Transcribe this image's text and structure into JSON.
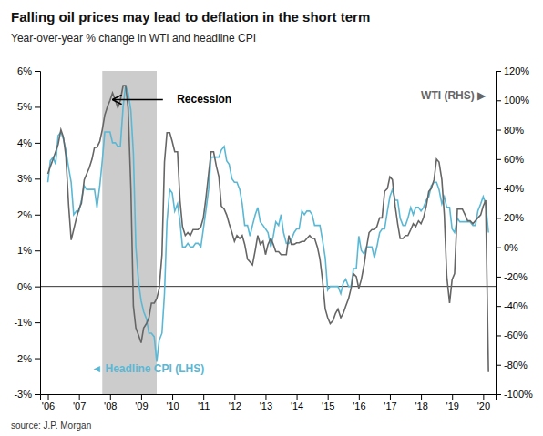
{
  "chart_data": {
    "type": "line",
    "title": "Falling oil prices may lead to deflation in the short term",
    "subtitle": "Year-over-year % change in WTI and headline CPI",
    "source": "source: J.P. Morgan",
    "grid": false,
    "x": [
      2006.0,
      2006.08,
      2006.17,
      2006.25,
      2006.33,
      2006.42,
      2006.5,
      2006.58,
      2006.67,
      2006.75,
      2006.83,
      2006.92,
      2007.0,
      2007.08,
      2007.17,
      2007.25,
      2007.33,
      2007.42,
      2007.5,
      2007.58,
      2007.67,
      2007.75,
      2007.83,
      2007.92,
      2008.0,
      2008.08,
      2008.17,
      2008.25,
      2008.33,
      2008.42,
      2008.5,
      2008.58,
      2008.67,
      2008.75,
      2008.83,
      2008.92,
      2009.0,
      2009.08,
      2009.17,
      2009.25,
      2009.33,
      2009.42,
      2009.5,
      2009.58,
      2009.67,
      2009.75,
      2009.83,
      2009.92,
      2010.0,
      2010.08,
      2010.17,
      2010.25,
      2010.33,
      2010.42,
      2010.5,
      2010.58,
      2010.67,
      2010.75,
      2010.83,
      2010.92,
      2011.0,
      2011.08,
      2011.17,
      2011.25,
      2011.33,
      2011.42,
      2011.5,
      2011.58,
      2011.67,
      2011.75,
      2011.83,
      2011.92,
      2012.0,
      2012.08,
      2012.17,
      2012.25,
      2012.33,
      2012.42,
      2012.5,
      2012.58,
      2012.67,
      2012.75,
      2012.83,
      2012.92,
      2013.0,
      2013.08,
      2013.17,
      2013.25,
      2013.33,
      2013.42,
      2013.5,
      2013.58,
      2013.67,
      2013.75,
      2013.83,
      2013.92,
      2014.0,
      2014.08,
      2014.17,
      2014.25,
      2014.33,
      2014.42,
      2014.5,
      2014.58,
      2014.67,
      2014.75,
      2014.83,
      2014.92,
      2015.0,
      2015.08,
      2015.17,
      2015.25,
      2015.33,
      2015.42,
      2015.5,
      2015.58,
      2015.67,
      2015.75,
      2015.83,
      2015.92,
      2016.0,
      2016.08,
      2016.17,
      2016.25,
      2016.33,
      2016.42,
      2016.5,
      2016.58,
      2016.67,
      2016.75,
      2016.83,
      2016.92,
      2017.0,
      2017.08,
      2017.17,
      2017.25,
      2017.33,
      2017.42,
      2017.5,
      2017.58,
      2017.67,
      2017.75,
      2017.83,
      2017.92,
      2018.0,
      2018.08,
      2018.17,
      2018.25,
      2018.33,
      2018.42,
      2018.5,
      2018.58,
      2018.67,
      2018.75,
      2018.83,
      2018.92,
      2019.0,
      2019.08,
      2019.17,
      2019.25,
      2019.33,
      2019.42,
      2019.5,
      2019.58,
      2019.67,
      2019.75,
      2019.83,
      2019.92,
      2020.0,
      2020.08,
      2020.17
    ],
    "xlim": [
      2005.75,
      2020.4
    ],
    "xticks": [
      {
        "value": 2006,
        "label": "'06"
      },
      {
        "value": 2007,
        "label": "'07"
      },
      {
        "value": 2008,
        "label": "'08"
      },
      {
        "value": 2009,
        "label": "'09"
      },
      {
        "value": 2010,
        "label": "'10"
      },
      {
        "value": 2011,
        "label": "'11"
      },
      {
        "value": 2012,
        "label": "'12"
      },
      {
        "value": 2013,
        "label": "'13"
      },
      {
        "value": 2014,
        "label": "'14"
      },
      {
        "value": 2015,
        "label": "'15"
      },
      {
        "value": 2016,
        "label": "'16"
      },
      {
        "value": 2017,
        "label": "'17"
      },
      {
        "value": 2018,
        "label": "'18"
      },
      {
        "value": 2019,
        "label": "'19"
      },
      {
        "value": 2020,
        "label": "'20"
      }
    ],
    "ylim": [
      -3.0,
      6.0
    ],
    "yticks": [
      {
        "value": -3,
        "label": "-3%"
      },
      {
        "value": -2,
        "label": "-2%"
      },
      {
        "value": -1,
        "label": "-1%"
      },
      {
        "value": 0,
        "label": "0%"
      },
      {
        "value": 1,
        "label": "1%"
      },
      {
        "value": 2,
        "label": "2%"
      },
      {
        "value": 3,
        "label": "3%"
      },
      {
        "value": 4,
        "label": "4%"
      },
      {
        "value": 5,
        "label": "5%"
      },
      {
        "value": 6,
        "label": "6%"
      }
    ],
    "y2lim": [
      -100,
      120
    ],
    "y2ticks": [
      {
        "value": -100,
        "label": "-100%"
      },
      {
        "value": -80,
        "label": "-80%"
      },
      {
        "value": -60,
        "label": "-60%"
      },
      {
        "value": -40,
        "label": "-40%"
      },
      {
        "value": -20,
        "label": "-20%"
      },
      {
        "value": 0,
        "label": "0%"
      },
      {
        "value": 20,
        "label": "20%"
      },
      {
        "value": 40,
        "label": "40%"
      },
      {
        "value": 60,
        "label": "60%"
      },
      {
        "value": 80,
        "label": "80%"
      },
      {
        "value": 100,
        "label": "100%"
      },
      {
        "value": 120,
        "label": "120%"
      }
    ],
    "series": [
      {
        "color": "#5bb8d4",
        "values": [
          2.9,
          3.5,
          3.6,
          3.4,
          4.2,
          4.3,
          4.1,
          3.8,
          3.3,
          2.9,
          2.0,
          2.1,
          2.1,
          2.4,
          2.8,
          2.7,
          2.7,
          2.7,
          2.7,
          2.2,
          2.8,
          3.5,
          4.3,
          4.3,
          4.3,
          4.0,
          4.0,
          3.9,
          3.9,
          5.0,
          5.6,
          5.4,
          4.9,
          3.7,
          1.1,
          0.1,
          -0.4,
          -0.7,
          -0.9,
          -1.3,
          -1.3,
          -1.4,
          -2.1,
          -1.5,
          -1.3,
          -0.2,
          1.8,
          2.7,
          2.6,
          2.1,
          2.3,
          1.8,
          1.1,
          1.1,
          1.2,
          1.1,
          1.1,
          1.2,
          1.2,
          1.1,
          1.6,
          2.1,
          2.7,
          3.6,
          3.6,
          3.6,
          3.6,
          3.8,
          3.9,
          3.5,
          3.4,
          3.0,
          2.9,
          2.9,
          2.7,
          2.3,
          1.7,
          1.7,
          1.4,
          1.7,
          2.0,
          2.2,
          1.8,
          1.7,
          1.6,
          1.5,
          1.1,
          1.4,
          1.8,
          1.7,
          2.0,
          1.5,
          1.2,
          1.2,
          1.3,
          1.5,
          1.6,
          1.6,
          2.1,
          2.0,
          2.1,
          2.1,
          2.0,
          1.7,
          1.7,
          1.7,
          1.3,
          0.8,
          -0.1,
          0.0,
          0.0,
          0.0,
          0.0,
          -0.2,
          0.1,
          0.2,
          0.0,
          0.0,
          0.5,
          0.5,
          1.4,
          1.0,
          0.9,
          1.1,
          1.1,
          1.1,
          0.8,
          1.1,
          1.5,
          1.6,
          1.6,
          2.1,
          2.5,
          2.7,
          2.4,
          2.4,
          1.9,
          1.7,
          1.7,
          1.9,
          2.2,
          2.0,
          2.2,
          2.2,
          2.1,
          2.2,
          2.4,
          2.5,
          2.8,
          2.9,
          2.9,
          2.7,
          2.3,
          2.5,
          2.2,
          2.2,
          1.6,
          1.5,
          1.9,
          1.8,
          1.8,
          1.8,
          1.8,
          1.8,
          1.7,
          1.7,
          2.1,
          2.3,
          2.5,
          2.3,
          1.5
        ]
      },
      {
        "color": "#666666",
        "axis": "y2",
        "values": [
          50,
          55,
          60,
          65,
          70,
          80,
          75,
          62,
          28,
          5,
          12,
          20,
          26,
          30,
          46,
          50,
          54,
          60,
          68,
          68,
          72,
          80,
          90,
          96,
          100,
          105,
          100,
          95,
          100,
          110,
          110,
          95,
          40,
          -40,
          -55,
          -60,
          -65,
          -55,
          -52,
          -48,
          -38,
          -38,
          -35,
          -28,
          -5,
          58,
          78,
          78,
          72,
          65,
          65,
          32,
          14,
          8,
          10,
          8,
          12,
          12,
          12,
          14,
          20,
          33,
          50,
          65,
          65,
          55,
          48,
          28,
          26,
          22,
          16,
          10,
          4,
          8,
          6,
          8,
          2,
          -8,
          -10,
          -12,
          -2,
          8,
          2,
          4,
          -5,
          2,
          6,
          2,
          -3,
          -3,
          -5,
          -5,
          -5,
          8,
          2,
          2,
          3,
          3,
          4,
          4,
          6,
          8,
          6,
          6,
          0,
          -8,
          -22,
          -42,
          -48,
          -52,
          -50,
          -45,
          -42,
          -48,
          -45,
          -40,
          -35,
          -28,
          -18,
          -20,
          -28,
          -22,
          -12,
          0,
          10,
          12,
          12,
          14,
          20,
          20,
          38,
          40,
          48,
          46,
          28,
          16,
          6,
          6,
          8,
          8,
          12,
          16,
          14,
          18,
          16,
          20,
          28,
          38,
          40,
          46,
          60,
          58,
          46,
          22,
          -20,
          -38,
          -22,
          -18,
          26,
          26,
          26,
          22,
          18,
          18,
          16,
          18,
          20,
          22,
          28,
          32,
          -85
        ]
      }
    ],
    "recession": {
      "start": 2007.75,
      "end": 2009.5,
      "color": "#cccccc"
    },
    "annotations": [
      {
        "text": "Recession",
        "x": 2010.15,
        "y": 5.2,
        "arrow_x": [
          2009.7,
          2008.1
        ]
      },
      {
        "text": "WTI (RHS) ▶",
        "x": 2018.0,
        "y": 5.3,
        "color": "#666666"
      },
      {
        "text": "◄ Headline CPI (LHS)",
        "x": 2007.4,
        "y": -2.3,
        "color": "#5bb8d4"
      }
    ]
  }
}
